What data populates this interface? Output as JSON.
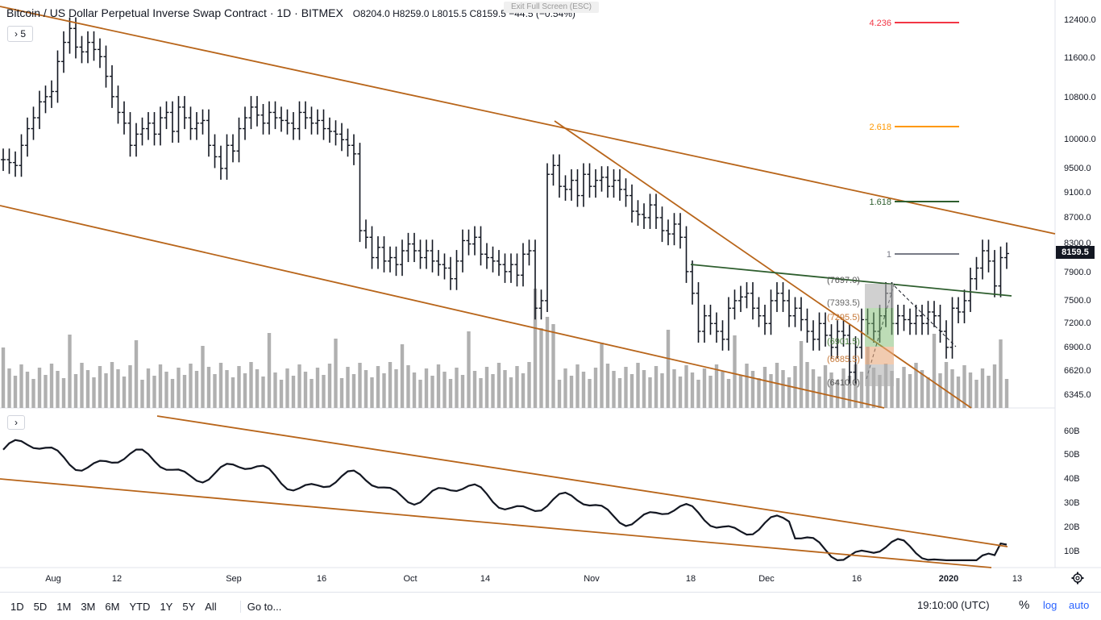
{
  "header": {
    "title": "Bitcoin / US Dollar Perpetual Inverse Swap Contract · 1D · BITMEX",
    "ohlc": "O8204.0  H8259.0  L8015.5  C8159.5  −44.5 (−0.54%)"
  },
  "exit_fullscreen": "Exit Full Screen (ESC)",
  "indicator_toggle_main": "› 5",
  "indicator_toggle_sub": "›",
  "last_price": "8159.5",
  "price_axis_labels": [
    "12400.0",
    "11600.0",
    "10800.0",
    "10000.0",
    "9500.0",
    "9100.0",
    "8700.0",
    "8300.0",
    "7900.0",
    "7500.0",
    "7200.0",
    "6900.0",
    "6620.0",
    "6345.0"
  ],
  "sub_axis_labels": [
    "60B",
    "50B",
    "40B",
    "30B",
    "20B",
    "10B"
  ],
  "time_axis_labels": [
    "Aug",
    "12",
    "Sep",
    "16",
    "Oct",
    "14",
    "Nov",
    "18",
    "Dec",
    "16",
    "2020",
    "13"
  ],
  "fib_levels": [
    {
      "label": "4.236",
      "color": "#f23645"
    },
    {
      "label": "2.618",
      "color": "#ff9800"
    },
    {
      "label": "1.618",
      "color": "#2e5e2e"
    },
    {
      "label": "1",
      "color": "#787b86"
    }
  ],
  "position_labels": [
    "(7697.0)",
    "(7393.5)",
    "(7295.5)",
    "(6901.5)",
    "(6685.5)",
    "(6410.0)"
  ],
  "bottombar": {
    "timeframes": [
      "1D",
      "5D",
      "1M",
      "3M",
      "6M",
      "YTD",
      "1Y",
      "5Y",
      "All"
    ],
    "goto": "Go to...",
    "time": "19:10:00 (UTC)",
    "percent": "%",
    "log": "log",
    "auto": "auto"
  },
  "colors": {
    "trendline": "#b8651a",
    "green_line": "#2e5e2e",
    "volume": "#b0b0b0"
  },
  "chart_data": {
    "type": "bar",
    "title": "Bitcoin / US Dollar Perpetual Inverse Swap Contract · 1D · BITMEX",
    "closes": [
      9650,
      9600,
      9550,
      9900,
      10200,
      10400,
      10700,
      10800,
      10900,
      11500,
      11900,
      12200,
      11800,
      11700,
      11900,
      11750,
      11600,
      11200,
      10800,
      10500,
      10300,
      9900,
      10100,
      10200,
      10300,
      10100,
      10400,
      10500,
      10150,
      10600,
      10400,
      10200,
      10300,
      10350,
      9900,
      9700,
      9500,
      9900,
      9800,
      10200,
      10400,
      10600,
      10450,
      10300,
      10500,
      10400,
      10350,
      10300,
      10200,
      10500,
      10400,
      10300,
      10350,
      10200,
      10150,
      10100,
      10000,
      9900,
      9750,
      8500,
      8400,
      8100,
      8250,
      8050,
      8100,
      8000,
      8200,
      8300,
      8200,
      8100,
      8200,
      8050,
      8000,
      7950,
      7800,
      8050,
      8350,
      8300,
      8400,
      8150,
      8100,
      8050,
      8000,
      7900,
      8000,
      7850,
      8150,
      8200,
      7400,
      7500,
      9400,
      9550,
      9200,
      9150,
      9300,
      9050,
      9400,
      9200,
      9300,
      9350,
      9200,
      9300,
      9150,
      9050,
      8800,
      8750,
      8700,
      8900,
      8700,
      8500,
      8450,
      8600,
      8400,
      7900,
      7600,
      7100,
      7300,
      7200,
      7100,
      7000,
      7400,
      7500,
      7550,
      7600,
      7400,
      7300,
      7200,
      7500,
      7600,
      7500,
      7300,
      7400,
      7250,
      7100,
      7000,
      7200,
      7050,
      6900,
      7100,
      7050,
      6600,
      6900,
      7250,
      7200,
      7100,
      7300,
      7600,
      7200,
      7300,
      7250,
      7200,
      7300,
      7200,
      7350,
      7300,
      7100,
      6900,
      7400,
      7350,
      7500,
      7800,
      7950,
      8200,
      8050,
      7700,
      8100,
      8159.5
    ],
    "volume_subchart": "oscillator 10B–60B",
    "ylim": [
      6200,
      12600
    ],
    "x_labels": [
      "Aug",
      "12",
      "Sep",
      "16",
      "Oct",
      "14",
      "Nov",
      "18",
      "Dec",
      "16",
      "2020",
      "13"
    ]
  }
}
